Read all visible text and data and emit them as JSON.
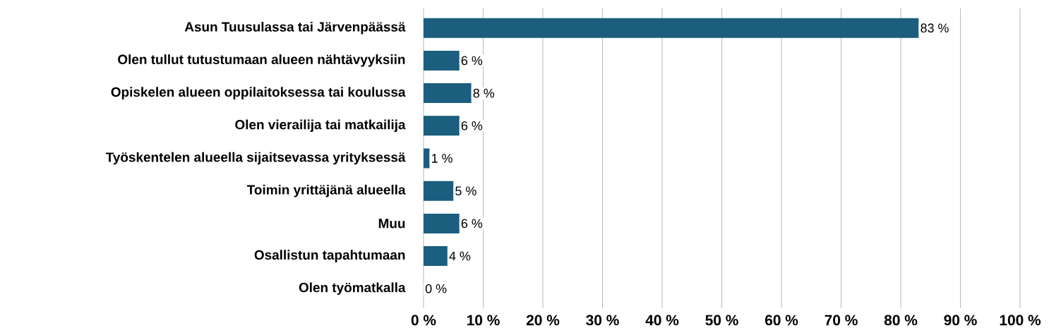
{
  "chart_data": {
    "type": "bar",
    "orientation": "horizontal",
    "categories": [
      "Asun Tuusulassa tai Järvenpäässä",
      "Olen tullut tutustumaan alueen nähtävyyksiin",
      "Opiskelen alueen oppilaitoksessa tai koulussa",
      "Olen vierailija tai matkailija",
      "Työskentelen alueella sijaitsevassa yrityksessä",
      "Toimin yrittäjänä alueella",
      "Muu",
      "Osallistun tapahtumaan",
      "Olen työmatkalla"
    ],
    "values": [
      83,
      6,
      8,
      6,
      1,
      5,
      6,
      4,
      0
    ],
    "value_labels": [
      "83 %",
      "6 %",
      "8 %",
      "6 %",
      "1 %",
      "5 %",
      "6 %",
      "4 %",
      "0 %"
    ],
    "color": "#1b5e7e",
    "xlim": [
      0,
      100
    ],
    "xticks": [
      {
        "value": 0,
        "label": "0 %"
      },
      {
        "value": 10,
        "label": "10 %"
      },
      {
        "value": 20,
        "label": "20 %"
      },
      {
        "value": 30,
        "label": "30 %"
      },
      {
        "value": 40,
        "label": "40 %"
      },
      {
        "value": 50,
        "label": "50 %"
      },
      {
        "value": 60,
        "label": "60 %"
      },
      {
        "value": 70,
        "label": "70 %"
      },
      {
        "value": 80,
        "label": "80 %"
      },
      {
        "value": 90,
        "label": "90 %"
      },
      {
        "value": 100,
        "label": "100 %"
      }
    ],
    "grid": "x"
  }
}
